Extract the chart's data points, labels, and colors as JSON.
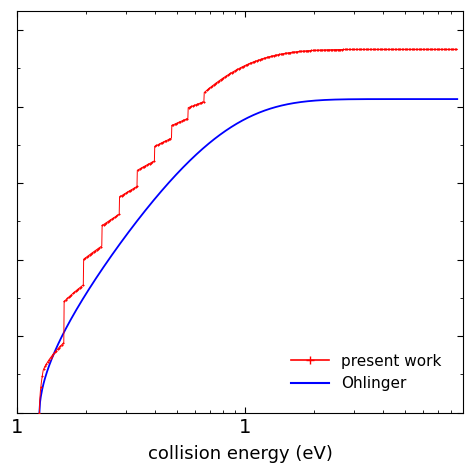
{
  "xlabel": "collision energy (eV)",
  "legend_entries": [
    "present work",
    "Ohlinger"
  ],
  "legend_colors": [
    "red",
    "blue"
  ],
  "background_color": "#ffffff",
  "xlabel_fontsize": 13,
  "legend_fontsize": 11,
  "xlim": [
    0.11,
    9.0
  ],
  "ylim": [
    0.0,
    1.05
  ],
  "x_tick_positions": [
    0.1,
    1.0
  ],
  "x_tick_labels": [
    "1",
    "1"
  ]
}
